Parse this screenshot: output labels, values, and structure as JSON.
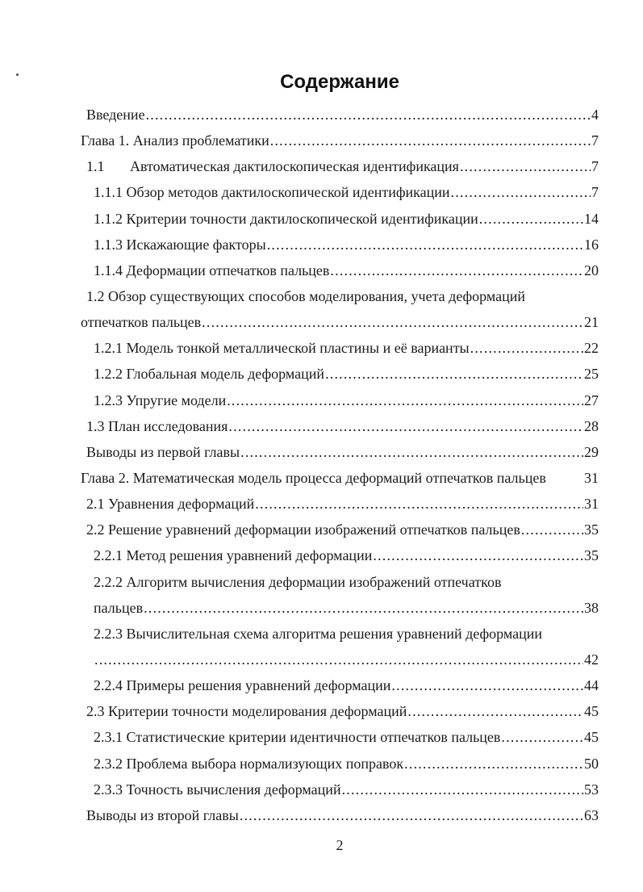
{
  "page": {
    "title": "Содержание",
    "footer_page_number": "2",
    "background_color": "#ffffff",
    "text_color": "#1a1a1a"
  },
  "toc": {
    "lines": [
      {
        "indent": 1,
        "text": "Введение",
        "leader": true,
        "page": "4"
      },
      {
        "indent": 0,
        "text": "Глава 1. Анализ проблематики",
        "leader": true,
        "page": "7"
      },
      {
        "indent": 1,
        "text": "1.1       Автоматическая дактилоскопическая идентификация",
        "leader": true,
        "page": "7"
      },
      {
        "indent": 2,
        "text": "1.1.1 Обзор методов дактилоскопической идентификации",
        "leader": true,
        "page": "7"
      },
      {
        "indent": 2,
        "text": "1.1.2 Критерии точности дактилоскопической идентификации",
        "leader": true,
        "page": "14"
      },
      {
        "indent": 2,
        "text": "1.1.3 Искажающие факторы",
        "leader": true,
        "page": "16"
      },
      {
        "indent": 2,
        "text": "1.1.4 Деформации отпечатков пальцев",
        "leader": true,
        "page": "20"
      },
      {
        "indent": 1,
        "text": "1.2 Обзор существующих способов моделирования, учета деформаций",
        "leader": false,
        "page": ""
      },
      {
        "indent": 0,
        "text": "отпечатков пальцев",
        "leader": true,
        "page": "21"
      },
      {
        "indent": 2,
        "text": "1.2.1 Модель тонкой металлической пластины и её варианты",
        "leader": true,
        "page": "22"
      },
      {
        "indent": 2,
        "text": "1.2.2 Глобальная модель деформаций",
        "leader": true,
        "page": "25"
      },
      {
        "indent": 2,
        "text": "1.2.3 Упругие модели",
        "leader": true,
        "page": "27"
      },
      {
        "indent": 1,
        "text": "1.3 План исследования",
        "leader": true,
        "page": "28"
      },
      {
        "indent": 1,
        "text": "Выводы из первой главы",
        "leader": true,
        "page": "29"
      },
      {
        "indent": 0,
        "text": "Глава 2. Математическая модель процесса деформаций отпечатков пальцев",
        "leader": false,
        "page": "31"
      },
      {
        "indent": 1,
        "text": "2.1 Уравнения деформаций",
        "leader": true,
        "page": "31"
      },
      {
        "indent": 1,
        "text": "2.2 Решение уравнений деформации изображений отпечатков пальцев",
        "leader": true,
        "page": "35"
      },
      {
        "indent": 2,
        "text": "2.2.1 Метод решения уравнений деформации",
        "leader": true,
        "page": "35"
      },
      {
        "indent": 2,
        "text": "2.2.2 Алгоритм вычисления деформации изображений отпечатков",
        "leader": false,
        "page": ""
      },
      {
        "indent": 2,
        "text": "пальцев",
        "leader": true,
        "page": "38"
      },
      {
        "indent": 2,
        "text": "2.2.3 Вычислительная схема алгоритма решения уравнений деформации",
        "leader": false,
        "page": ""
      },
      {
        "indent": 2,
        "text": "",
        "leader": true,
        "page": "42"
      },
      {
        "indent": 2,
        "text": "2.2.4 Примеры решения уравнений деформации",
        "leader": true,
        "page": "44"
      },
      {
        "indent": 1,
        "text": "2.3 Критерии точности моделирования деформаций",
        "leader": true,
        "page": "45"
      },
      {
        "indent": 2,
        "text": "2.3.1 Статистические критерии идентичности отпечатков пальцев",
        "leader": true,
        "page": "45"
      },
      {
        "indent": 2,
        "text": "2.3.2 Проблема выбора нормализующих поправок",
        "leader": true,
        "page": "50"
      },
      {
        "indent": 2,
        "text": "2.3.3 Точность вычисления деформаций",
        "leader": true,
        "page": "53"
      },
      {
        "indent": 1,
        "text": "Выводы из второй главы",
        "leader": true,
        "page": "63"
      }
    ]
  }
}
